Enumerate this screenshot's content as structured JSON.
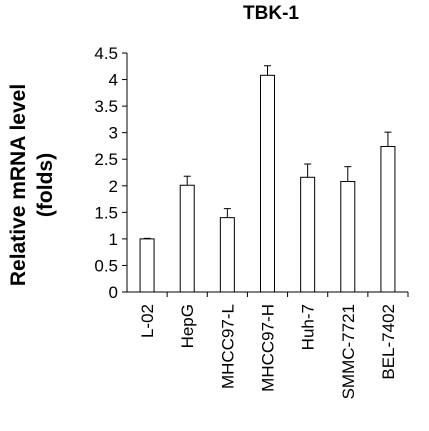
{
  "chart_data": {
    "type": "bar",
    "title": "TBK-1",
    "ylabel_line1": "Relative mRNA level",
    "ylabel_line2": "(folds)",
    "xlabel": "",
    "categories": [
      "L-02",
      "HepG",
      "MHCC97-L",
      "MHCC97-H",
      "Huh-7",
      "SMMC-7721",
      "BEL-7402"
    ],
    "values": [
      1.0,
      2.01,
      1.4,
      4.08,
      2.16,
      2.08,
      2.74
    ],
    "errors": [
      0.01,
      0.17,
      0.17,
      0.18,
      0.25,
      0.28,
      0.27
    ],
    "ylim": [
      0,
      4.5
    ],
    "yticks": [
      "0",
      "0.5",
      "1",
      "1.5",
      "2",
      "2.5",
      "3",
      "3.5",
      "4",
      "4.5"
    ],
    "grid": false,
    "bar_color": "#ffffff",
    "edge_color": "#000000"
  }
}
